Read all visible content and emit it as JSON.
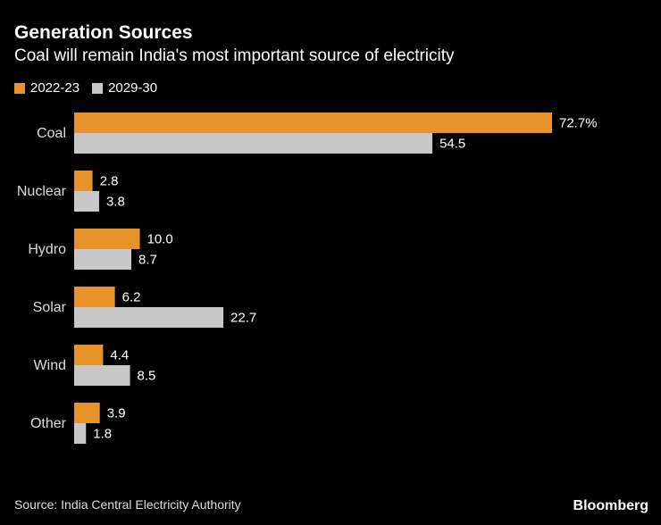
{
  "chart_data": {
    "type": "bar",
    "orientation": "horizontal",
    "title": "Generation Sources",
    "subtitle": "Coal will remain India's most important source of electricity",
    "categories": [
      "Coal",
      "Nuclear",
      "Hydro",
      "Solar",
      "Wind",
      "Other"
    ],
    "series": [
      {
        "name": "2022-23",
        "color": "#e8922a",
        "values": [
          72.7,
          2.8,
          10.0,
          6.2,
          4.4,
          3.9
        ],
        "labels": [
          "72.7%",
          "2.8",
          "10.0",
          "6.2",
          "4.4",
          "3.9"
        ]
      },
      {
        "name": "2029-30",
        "color": "#c8c8c8",
        "values": [
          54.5,
          3.8,
          8.7,
          22.7,
          8.5,
          1.8
        ],
        "labels": [
          "54.5",
          "3.8",
          "8.7",
          "22.7",
          "8.5",
          "1.8"
        ]
      }
    ],
    "xlim": [
      0,
      72.7
    ],
    "xlabel": "",
    "ylabel": "",
    "legend": "top-left",
    "grid": false
  },
  "footer": {
    "source": "Source: India Central Electricity Authority",
    "brand": "Bloomberg"
  }
}
